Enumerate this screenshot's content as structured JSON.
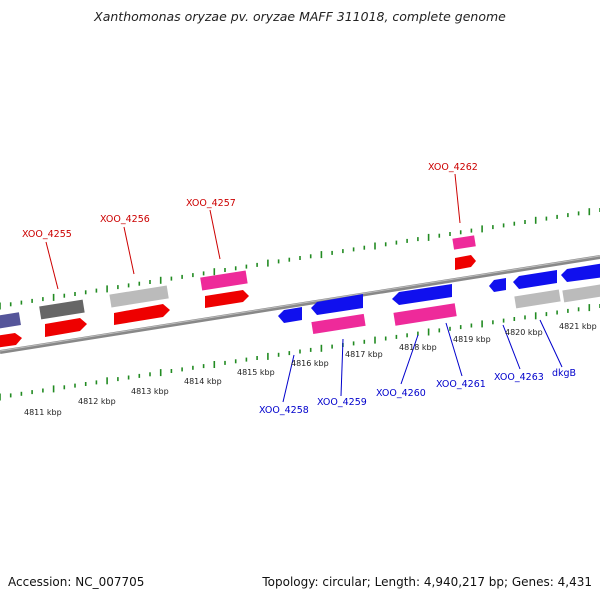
{
  "title": "Xanthomonas oryzae pv. oryzae MAFF 311018, complete genome",
  "footer": {
    "accession": "Accession: NC_007705",
    "summary": "Topology: circular; Length: 4,940,217 bp; Genes: 4,431"
  },
  "scale_labels": [
    "4811 kbp",
    "4812 kbp",
    "4813 kbp",
    "4814 kbp",
    "4815 kbp",
    "4816 kbp",
    "4817 kbp",
    "4818 kbp",
    "4819 kbp",
    "4820 kbp",
    "4821 kbp"
  ],
  "gene_labels_top": [
    "XOO_4255",
    "XOO_4256",
    "XOO_4257",
    "XOO_4262"
  ],
  "gene_labels_bottom": [
    "XOO_4258",
    "XOO_4259",
    "XOO_4260",
    "XOO_4261",
    "XOO_4263",
    "dkgB"
  ],
  "colors": {
    "top_label": "#cc0000",
    "bottom_label": "#0000cc",
    "red_gene": "#ee0000",
    "pink_gene": "#ee2a9a",
    "blue_gene": "#1010ee",
    "gray_gene": "#bbbbbb",
    "dark_gray_gene": "#666666",
    "purple_gene": "#55559a",
    "tick": "#228b22",
    "backbone": "#888888"
  }
}
